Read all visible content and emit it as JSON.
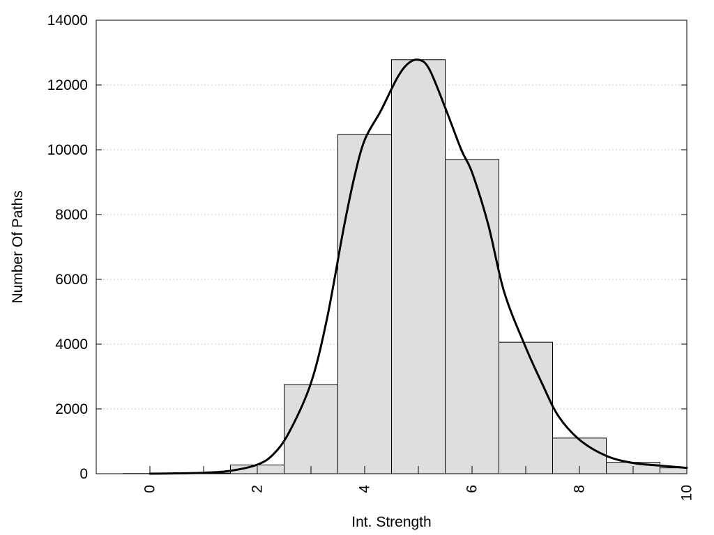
{
  "chart_data": {
    "type": "bar",
    "xlabel": "Int. Strength",
    "ylabel": "Number Of Paths",
    "xlim": [
      -1,
      10
    ],
    "ylim": [
      0,
      14000
    ],
    "x_ticks": [
      "0",
      "2",
      "4",
      "6",
      "8",
      "10"
    ],
    "y_ticks": [
      "0",
      "2000",
      "4000",
      "6000",
      "8000",
      "10000",
      "12000",
      "14000"
    ],
    "grid": "horizontal dotted",
    "bars": {
      "bin_centers": [
        0,
        1,
        2,
        3,
        4,
        5,
        6,
        7,
        8,
        9,
        10
      ],
      "bin_width": 1,
      "values": [
        5,
        20,
        270,
        2750,
        10470,
        12780,
        9700,
        4060,
        1100,
        350,
        180
      ]
    },
    "fit_curve": {
      "x": [
        0,
        0.5,
        1,
        1.5,
        2,
        2.3,
        2.6,
        3,
        3.3,
        3.6,
        3.8,
        4,
        4.3,
        4.6,
        4.8,
        5,
        5.2,
        5.5,
        5.8,
        6,
        6.3,
        6.6,
        7,
        7.3,
        7.6,
        8,
        8.5,
        9,
        9.5,
        10
      ],
      "y": [
        0,
        10,
        30,
        90,
        280,
        600,
        1300,
        2800,
        4800,
        7500,
        9100,
        10300,
        11200,
        12200,
        12650,
        12780,
        12500,
        11300,
        10000,
        9300,
        7700,
        5600,
        3900,
        2800,
        1800,
        1050,
        550,
        330,
        250,
        180
      ]
    }
  }
}
